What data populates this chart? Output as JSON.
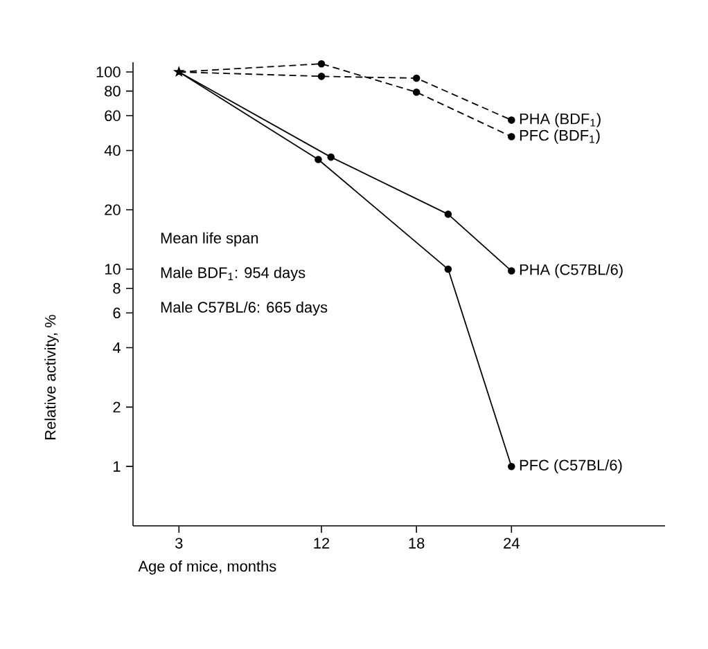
{
  "chart_data": {
    "type": "line",
    "xlabel": "Age of mice, months",
    "ylabel": "Relative activity, %",
    "log": "y",
    "xlim": [
      0.1,
      33.7
    ],
    "xticks": [
      3,
      12,
      18,
      24
    ],
    "ylim": [
      0.5,
      112
    ],
    "yticks": [
      1,
      2,
      4,
      6,
      8,
      10,
      20,
      40,
      60,
      80,
      100
    ],
    "annotations": [
      "Mean life span",
      "Male BDF$_{1}$: 954 days",
      "Male C57BL/6: 665 days"
    ],
    "series": [
      {
        "name": "PHA (BDF$_{1}$)",
        "color": "#000000",
        "line_style": "dashed",
        "marker": "circle",
        "x": [
          3,
          12,
          18,
          24
        ],
        "values": [
          100,
          95,
          93,
          57
        ]
      },
      {
        "name": "PFC (BDF$_{1}$)",
        "color": "#000000",
        "line_style": "dashed",
        "marker": "circle",
        "x": [
          3,
          12,
          18,
          24
        ],
        "values": [
          100,
          110,
          79,
          47
        ]
      },
      {
        "name": "PHA (C57BL/6)",
        "color": "#000000",
        "line_style": "solid",
        "marker": "circle",
        "x": [
          3,
          12.6,
          20,
          24
        ],
        "values": [
          100,
          37,
          19,
          9.8
        ]
      },
      {
        "name": "PFC (C57BL/6)",
        "color": "#000000",
        "line_style": "solid",
        "marker": "circle",
        "x": [
          3,
          11.8,
          20,
          24
        ],
        "values": [
          100,
          36,
          10,
          1
        ]
      },
      {
        "type": "scatter",
        "color": "#000000",
        "marker": "star",
        "x": [
          3
        ],
        "values": [
          100
        ]
      }
    ]
  }
}
